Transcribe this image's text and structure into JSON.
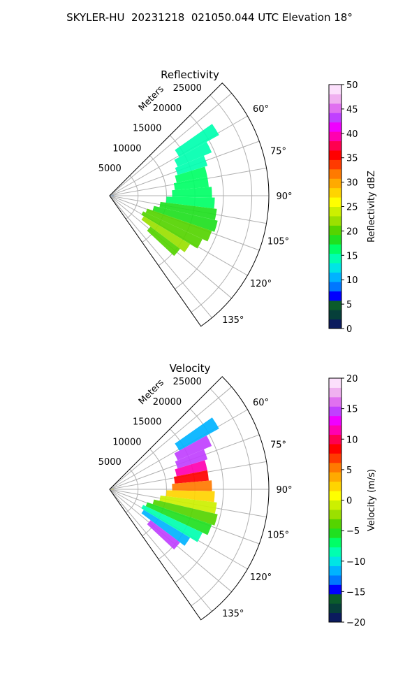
{
  "figure_title": "SKYLER-HU  20231218  021050.044 UTC Elevation 18°",
  "chart_data": [
    {
      "type": "heatmap",
      "subtype": "polar-sector",
      "title": "Reflectivity",
      "range_label": "Meters",
      "range_ticks": [
        5000,
        10000,
        15000,
        20000,
        25000
      ],
      "range_tick_labels": [
        "5000",
        "10000",
        "15000",
        "20000",
        "25000"
      ],
      "range_max": 28000,
      "azimuth_range_deg": [
        45,
        145
      ],
      "azimuth_ticks": [
        60,
        75,
        90,
        105,
        120,
        135
      ],
      "azimuth_tick_labels": [
        "60°",
        "75°",
        "90°",
        "105°",
        "120°",
        "135°"
      ],
      "grid": true,
      "colorbar": {
        "label": "Reflectivity dBZ",
        "range": [
          0,
          50
        ],
        "ticks": [
          0,
          5,
          10,
          15,
          20,
          25,
          30,
          35,
          40,
          45,
          50
        ],
        "tick_labels": [
          "0",
          "5",
          "10",
          "15",
          "20",
          "25",
          "30",
          "35",
          "40",
          "45",
          "50"
        ],
        "colors": [
          "#0b1b5e",
          "#063f3a",
          "#0b5c2b",
          "#0000ff",
          "#0077ff",
          "#00b3ff",
          "#00e5e5",
          "#00ffb0",
          "#00ff66",
          "#20e020",
          "#55d400",
          "#9be000",
          "#ccf000",
          "#ffff00",
          "#ffd400",
          "#ffaa00",
          "#ff7a00",
          "#ff3a00",
          "#ff0000",
          "#ff0050",
          "#ff00b0",
          "#f000ff",
          "#c040ff",
          "#e070f0",
          "#f0b0f0",
          "#fce0fc"
        ]
      },
      "echo_cells": [
        {
          "az": 58,
          "r0": 14000,
          "r1": 22000,
          "value": 15
        },
        {
          "az": 64,
          "r0": 13000,
          "r1": 19500,
          "value": 14
        },
        {
          "az": 70,
          "r0": 12500,
          "r1": 18000,
          "value": 15
        },
        {
          "az": 76,
          "r0": 12000,
          "r1": 17500,
          "value": 16
        },
        {
          "az": 82,
          "r0": 11500,
          "r1": 17500,
          "value": 16
        },
        {
          "az": 88,
          "r0": 11000,
          "r1": 18000,
          "value": 17
        },
        {
          "az": 94,
          "r0": 10000,
          "r1": 18500,
          "value": 17
        },
        {
          "az": 100,
          "r0": 9000,
          "r1": 19000,
          "value": 18
        },
        {
          "az": 106,
          "r0": 8000,
          "r1": 19500,
          "value": 19
        },
        {
          "az": 112,
          "r0": 7000,
          "r1": 19000,
          "value": 20
        },
        {
          "az": 118,
          "r0": 6500,
          "r1": 18000,
          "value": 21
        },
        {
          "az": 124,
          "r0": 7000,
          "r1": 16500,
          "value": 22
        },
        {
          "az": 130,
          "r0": 9000,
          "r1": 15500,
          "value": 20
        },
        {
          "az": 90,
          "r0": 0,
          "r1": 700,
          "value": 8
        }
      ]
    },
    {
      "type": "heatmap",
      "subtype": "polar-sector",
      "title": "Velocity",
      "range_label": "Meters",
      "range_ticks": [
        5000,
        10000,
        15000,
        20000,
        25000
      ],
      "range_tick_labels": [
        "5000",
        "10000",
        "15000",
        "20000",
        "25000"
      ],
      "range_max": 28000,
      "azimuth_range_deg": [
        45,
        145
      ],
      "azimuth_ticks": [
        60,
        75,
        90,
        105,
        120,
        135
      ],
      "azimuth_tick_labels": [
        "60°",
        "75°",
        "90°",
        "105°",
        "120°",
        "135°"
      ],
      "grid": true,
      "colorbar": {
        "label": "Velocity (m/s)",
        "range": [
          -20,
          20
        ],
        "ticks": [
          -20,
          -15,
          -10,
          -5,
          0,
          5,
          10,
          15,
          20
        ],
        "tick_labels": [
          "−20",
          "−15",
          "−10",
          "−5",
          "0",
          "5",
          "10",
          "15",
          "20"
        ],
        "colors": [
          "#0b1b5e",
          "#063f3a",
          "#0b5c2b",
          "#0000ff",
          "#0077ff",
          "#00b3ff",
          "#00e5e5",
          "#00ffb0",
          "#00ff66",
          "#20e020",
          "#55d400",
          "#9be000",
          "#ccf000",
          "#ffff00",
          "#ffd400",
          "#ffaa00",
          "#ff7a00",
          "#ff3a00",
          "#ff0000",
          "#ff0050",
          "#ff00b0",
          "#f000ff",
          "#c040ff",
          "#e070f0",
          "#f0b0f0",
          "#fce0fc"
        ]
      },
      "echo_cells": [
        {
          "az": 58,
          "r0": 14000,
          "r1": 22000,
          "value": -12
        },
        {
          "az": 64,
          "r0": 13000,
          "r1": 19500,
          "value": 14
        },
        {
          "az": 70,
          "r0": 12500,
          "r1": 18000,
          "value": 15
        },
        {
          "az": 76,
          "r0": 12000,
          "r1": 17500,
          "value": 11
        },
        {
          "az": 82,
          "r0": 11500,
          "r1": 17500,
          "value": 9
        },
        {
          "az": 88,
          "r0": 11000,
          "r1": 18000,
          "value": 5
        },
        {
          "az": 94,
          "r0": 10000,
          "r1": 18500,
          "value": 2
        },
        {
          "az": 100,
          "r0": 9000,
          "r1": 19000,
          "value": -1
        },
        {
          "az": 106,
          "r0": 8000,
          "r1": 19500,
          "value": -4
        },
        {
          "az": 112,
          "r0": 7000,
          "r1": 19000,
          "value": -6
        },
        {
          "az": 118,
          "r0": 6500,
          "r1": 18000,
          "value": -9
        },
        {
          "az": 124,
          "r0": 7000,
          "r1": 16500,
          "value": -11
        },
        {
          "az": 130,
          "r0": 9000,
          "r1": 15500,
          "value": 15
        },
        {
          "az": 90,
          "r0": 0,
          "r1": 700,
          "value": 1
        }
      ]
    }
  ]
}
